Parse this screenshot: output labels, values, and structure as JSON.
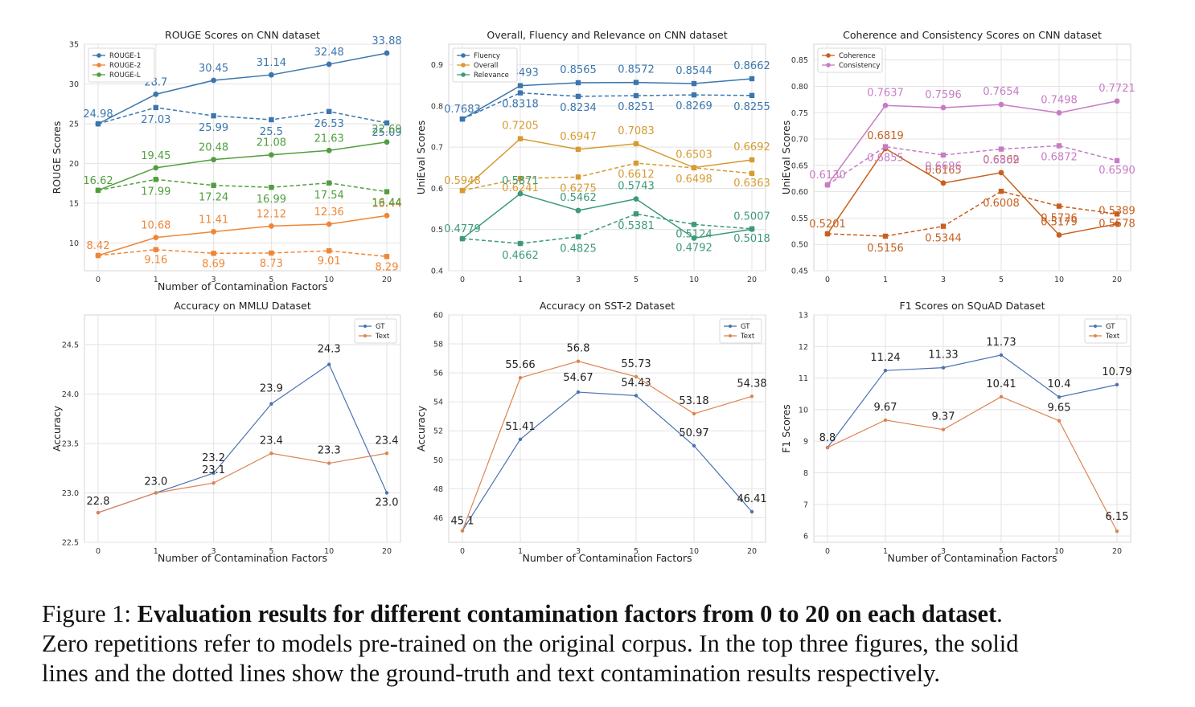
{
  "caption": {
    "label": "Figure 1: ",
    "bold": "Evaluation results for different contamination factors from 0 to 20 on each dataset",
    "period": ".",
    "line2": "Zero repetitions refer to models pre-trained on the original corpus. In the top three figures, the solid",
    "line3": "lines and the dotted lines show the ground-truth and text contamination results respectively."
  },
  "chart_data": [
    {
      "type": "line",
      "title": "ROUGE Scores on CNN dataset",
      "xlabel": "Number of Contamination Factors",
      "ylabel": "ROUGE Scores",
      "categories": [
        "0",
        "1",
        "3",
        "5",
        "10",
        "20"
      ],
      "ylim": [
        6.5,
        35
      ],
      "yticks": [
        10,
        15,
        20,
        25,
        30,
        35
      ],
      "legend_position": "top-left",
      "grid": true,
      "series": [
        {
          "name": "ROUGE-1",
          "color": "#3a76af",
          "style": "solid",
          "marker": "circle",
          "values": [
            24.98,
            28.7,
            30.45,
            31.14,
            32.48,
            33.88
          ],
          "labels": [
            "24.98",
            "28.7",
            "30.45",
            "31.14",
            "32.48",
            "33.88"
          ],
          "legend": true
        },
        {
          "name": "",
          "color": "#3a76af",
          "style": "dashed",
          "marker": "square",
          "values": [
            24.98,
            27.03,
            25.99,
            25.5,
            26.53,
            25.09
          ],
          "labels": [
            "",
            "27.03",
            "25.99",
            "25.5",
            "26.53",
            "25.09"
          ],
          "legend": false
        },
        {
          "name": "ROUGE-2",
          "color": "#ef8636",
          "style": "solid",
          "marker": "circle",
          "values": [
            8.42,
            10.68,
            11.41,
            12.12,
            12.36,
            13.44
          ],
          "labels": [
            "8.42",
            "10.68",
            "11.41",
            "12.12",
            "12.36",
            "13.44"
          ],
          "legend": true
        },
        {
          "name": "",
          "color": "#ef8636",
          "style": "dashed",
          "marker": "square",
          "values": [
            8.42,
            9.16,
            8.69,
            8.73,
            9.01,
            8.29
          ],
          "labels": [
            "",
            "9.16",
            "8.69",
            "8.73",
            "9.01",
            "8.29"
          ],
          "legend": false
        },
        {
          "name": "ROUGE-L",
          "color": "#519e3e",
          "style": "solid",
          "marker": "circle",
          "values": [
            16.62,
            19.45,
            20.48,
            21.08,
            21.63,
            22.69
          ],
          "labels": [
            "16.62",
            "19.45",
            "20.48",
            "21.08",
            "21.63",
            "22.69"
          ],
          "legend": true
        },
        {
          "name": "",
          "color": "#519e3e",
          "style": "dashed",
          "marker": "square",
          "values": [
            16.62,
            17.99,
            17.24,
            16.99,
            17.54,
            16.44
          ],
          "labels": [
            "",
            "17.99",
            "17.24",
            "16.99",
            "17.54",
            "16.44"
          ],
          "legend": false
        }
      ]
    },
    {
      "type": "line",
      "title": "Overall, Fluency and Relevance on CNN dataset",
      "xlabel": "",
      "ylabel": "UniEval Scores",
      "categories": [
        "0",
        "1",
        "3",
        "5",
        "10",
        "20"
      ],
      "ylim": [
        0.4,
        0.95
      ],
      "yticks": [
        0.4,
        0.5,
        0.6,
        0.7,
        0.8,
        0.9
      ],
      "legend_position": "top-left",
      "grid": true,
      "series": [
        {
          "name": "Fluency",
          "color": "#3a76af",
          "style": "solid",
          "marker": "square",
          "values": [
            0.7683,
            0.8493,
            0.8565,
            0.8572,
            0.8544,
            0.8662
          ],
          "labels": [
            "0.7683",
            "0.8493",
            "0.8565",
            "0.8572",
            "0.8544",
            "0.8662"
          ],
          "legend": true
        },
        {
          "name": "",
          "color": "#3a76af",
          "style": "dashed",
          "marker": "square",
          "values": [
            0.7683,
            0.8318,
            0.8234,
            0.8251,
            0.8269,
            0.8255
          ],
          "labels": [
            "",
            "0.8318",
            "0.8234",
            "0.8251",
            "0.8269",
            "0.8255"
          ],
          "legend": false
        },
        {
          "name": "Overall",
          "color": "#d69b31",
          "style": "solid",
          "marker": "square",
          "values": [
            0.5948,
            0.7205,
            0.6947,
            0.7083,
            0.6503,
            0.6692
          ],
          "labels": [
            "0.5948",
            "0.7205",
            "0.6947",
            "0.7083",
            "0.6503",
            "0.6692"
          ],
          "legend": true
        },
        {
          "name": "",
          "color": "#d69b31",
          "style": "dashed",
          "marker": "square",
          "values": [
            0.5948,
            0.6241,
            0.6275,
            0.6612,
            0.6498,
            0.6363
          ],
          "labels": [
            "",
            "0.6241",
            "0.6275",
            "0.6612",
            "0.6498",
            "0.6363"
          ],
          "legend": false
        },
        {
          "name": "Relevance",
          "color": "#3c9a78",
          "style": "solid",
          "marker": "circle",
          "values": [
            0.4779,
            0.5871,
            0.5462,
            0.5743,
            0.4792,
            0.5007
          ],
          "labels": [
            "0.4779",
            "0.5871",
            "0.5462",
            "0.5743",
            "0.4792",
            "0.5007"
          ],
          "legend": true
        },
        {
          "name": "",
          "color": "#3c9a78",
          "style": "dashed",
          "marker": "square",
          "values": [
            0.4779,
            0.4662,
            0.4825,
            0.5381,
            0.5124,
            0.5018
          ],
          "labels": [
            "",
            "0.4662",
            "0.4825",
            "0.5381",
            "0.5124",
            "0.5018"
          ],
          "legend": false
        }
      ]
    },
    {
      "type": "line",
      "title": "Coherence and Consistency Scores on CNN dataset",
      "xlabel": "",
      "ylabel": "UniEval Scores",
      "categories": [
        "0",
        "1",
        "3",
        "5",
        "10",
        "20"
      ],
      "ylim": [
        0.45,
        0.88
      ],
      "yticks": [
        0.45,
        0.5,
        0.55,
        0.6,
        0.65,
        0.7,
        0.75,
        0.8,
        0.85
      ],
      "legend_position": "top-left",
      "grid": true,
      "series": [
        {
          "name": "Coherence",
          "color": "#c7601f",
          "style": "solid",
          "marker": "circle",
          "values": [
            0.5201,
            0.6819,
            0.6165,
            0.6362,
            0.5179,
            0.5389
          ],
          "labels": [
            "0.5201",
            "0.6819",
            "0.6165",
            "0.6362",
            "0.5179",
            "0.5389"
          ],
          "legend": true
        },
        {
          "name": "",
          "color": "#c7601f",
          "style": "dashed",
          "marker": "square",
          "values": [
            0.5201,
            0.5156,
            0.5344,
            0.6008,
            0.5726,
            0.5578
          ],
          "labels": [
            "",
            "0.5156",
            "0.5344",
            "0.6008",
            "0.5726",
            "0.5578"
          ],
          "legend": false
        },
        {
          "name": "Consistency",
          "color": "#c77cc4",
          "style": "solid",
          "marker": "circle",
          "values": [
            0.613,
            0.7637,
            0.7596,
            0.7654,
            0.7498,
            0.7721
          ],
          "labels": [
            "0.6130",
            "0.7637",
            "0.7596",
            "0.7654",
            "0.7498",
            "0.7721"
          ],
          "legend": true
        },
        {
          "name": "",
          "color": "#c77cc4",
          "style": "dashed",
          "marker": "square",
          "values": [
            0.613,
            0.6855,
            0.6696,
            0.6809,
            0.6872,
            0.659
          ],
          "labels": [
            "",
            "0.6855",
            "0.6696",
            "0.6809",
            "0.6872",
            "0.6590"
          ],
          "legend": false
        }
      ]
    },
    {
      "type": "line",
      "title": "Accuracy on MMLU Dataset",
      "xlabel": "Number of Contamination Factors",
      "ylabel": "Accuracy",
      "categories": [
        "0",
        "1",
        "3",
        "5",
        "10",
        "20"
      ],
      "ylim": [
        22.5,
        24.8
      ],
      "yticks": [
        22.5,
        23.0,
        23.5,
        24.0,
        24.5
      ],
      "legend_position": "top-right",
      "grid": true,
      "series": [
        {
          "name": "GT",
          "color": "#4c72b0",
          "style": "solid",
          "marker": "dot",
          "values": [
            22.8,
            23.0,
            23.2,
            23.9,
            24.3,
            23.0
          ],
          "labels": [
            "",
            "",
            "23.2",
            "23.9",
            "24.3",
            "23.0"
          ],
          "legend": true
        },
        {
          "name": "Text",
          "color": "#dd8452",
          "style": "solid",
          "marker": "dot",
          "values": [
            22.8,
            23.0,
            23.1,
            23.4,
            23.3,
            23.4
          ],
          "labels": [
            "22.8",
            "23.0",
            "23.1",
            "23.4",
            "23.3",
            "23.4"
          ],
          "legend": true
        }
      ]
    },
    {
      "type": "line",
      "title": "Accuracy on SST-2 Dataset",
      "xlabel": "Number of Contamination Factors",
      "ylabel": "Accuracy",
      "categories": [
        "0",
        "1",
        "3",
        "5",
        "10",
        "20"
      ],
      "ylim": [
        44.3,
        60
      ],
      "yticks": [
        46,
        48,
        50,
        52,
        54,
        56,
        58,
        60
      ],
      "legend_position": "top-right",
      "grid": true,
      "series": [
        {
          "name": "GT",
          "color": "#4c72b0",
          "style": "solid",
          "marker": "dot",
          "values": [
            45.1,
            51.41,
            54.67,
            54.43,
            50.97,
            46.41
          ],
          "labels": [
            "45.1",
            "51.41",
            "54.67",
            "54.43",
            "50.97",
            "46.41"
          ],
          "legend": true
        },
        {
          "name": "Text",
          "color": "#dd8452",
          "style": "solid",
          "marker": "dot",
          "values": [
            45.1,
            55.66,
            56.8,
            55.73,
            53.18,
            54.38
          ],
          "labels": [
            "",
            "55.66",
            "56.8",
            "55.73",
            "53.18",
            "54.38"
          ],
          "legend": true
        }
      ]
    },
    {
      "type": "line",
      "title": "F1 Scores on SQuAD Dataset",
      "xlabel": "Number of Contamination Factors",
      "ylabel": "F1 Scores",
      "categories": [
        "0",
        "1",
        "3",
        "5",
        "10",
        "20"
      ],
      "ylim": [
        5.8,
        13
      ],
      "yticks": [
        6,
        7,
        8,
        9,
        10,
        11,
        12,
        13
      ],
      "legend_position": "top-right",
      "grid": true,
      "series": [
        {
          "name": "GT",
          "color": "#4c72b0",
          "style": "solid",
          "marker": "dot",
          "values": [
            8.8,
            11.24,
            11.33,
            11.73,
            10.4,
            10.79
          ],
          "labels": [
            "8.8",
            "11.24",
            "11.33",
            "11.73",
            "10.4",
            "10.79"
          ],
          "legend": true
        },
        {
          "name": "Text",
          "color": "#dd8452",
          "style": "solid",
          "marker": "dot",
          "values": [
            8.8,
            9.67,
            9.37,
            10.41,
            9.65,
            6.15
          ],
          "labels": [
            "",
            "9.67",
            "9.37",
            "10.41",
            "9.65",
            "6.15"
          ],
          "legend": true
        }
      ]
    }
  ]
}
